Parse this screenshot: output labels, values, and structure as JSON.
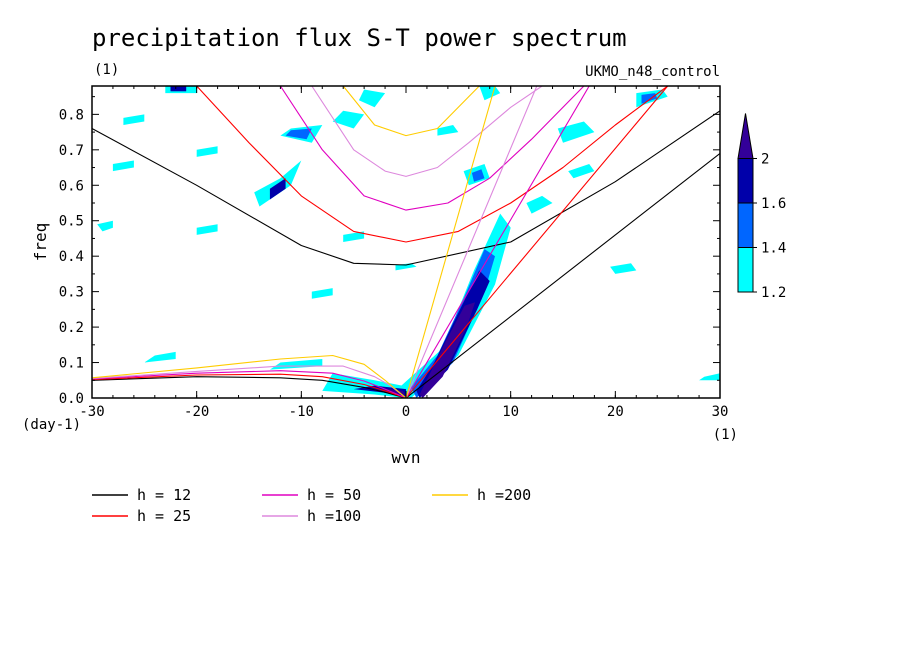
{
  "chart_data": {
    "type": "heatmap",
    "title": "precipitation flux S-T power spectrum",
    "subtitle_left": "(1)",
    "subtitle_right": "UKMO_n48_control",
    "xlabel": "wvn",
    "ylabel": "freq",
    "x_unit": "(1)",
    "y_unit": "(day-1)",
    "xlim": [
      -30,
      30
    ],
    "ylim": [
      0,
      0.88
    ],
    "x_ticks": [
      -30,
      -20,
      -10,
      0,
      10,
      20,
      30
    ],
    "x_tick_labels": [
      "-30",
      "-20",
      "-10",
      "0",
      "10",
      "20",
      "30"
    ],
    "y_ticks": [
      0,
      0.1,
      0.2,
      0.3,
      0.4,
      0.5,
      0.6,
      0.7,
      0.8
    ],
    "y_tick_labels": [
      "0.0",
      "0.1",
      "0.2",
      "0.3",
      "0.4",
      "0.5",
      "0.6",
      "0.7",
      "0.8"
    ],
    "colorbar": {
      "levels": [
        1.2,
        1.4,
        1.6,
        2
      ],
      "labels": [
        "1.2",
        "1.4",
        "1.6",
        "2"
      ],
      "colors": [
        "#00ffff",
        "#0066ff",
        "#0000aa",
        "#330099"
      ]
    },
    "legend": [
      {
        "label": "h = 12",
        "h": 12,
        "color": "#000000"
      },
      {
        "label": "h = 25",
        "h": 25,
        "color": "#ff0000"
      },
      {
        "label": "h = 50",
        "h": 50,
        "color": "#e000c0"
      },
      {
        "label": "h =100",
        "h": 100,
        "color": "#dd88dd"
      },
      {
        "label": "h =200",
        "h": 200,
        "color": "#ffcc00"
      }
    ],
    "kelvin_waves": [
      {
        "h": 12,
        "points": [
          [
            0,
            0
          ],
          [
            30,
            0.69
          ]
        ]
      },
      {
        "h": 25,
        "points": [
          [
            0,
            0
          ],
          [
            25,
            0.88
          ]
        ]
      },
      {
        "h": 50,
        "points": [
          [
            0,
            0
          ],
          [
            17.5,
            0.88
          ]
        ]
      },
      {
        "h": 100,
        "points": [
          [
            0,
            0
          ],
          [
            12.5,
            0.88
          ]
        ]
      },
      {
        "h": 200,
        "points": [
          [
            0,
            0
          ],
          [
            8.5,
            0.88
          ]
        ]
      }
    ],
    "gravity_waves_n1": [
      {
        "h": 12,
        "points": [
          [
            -30,
            0.76
          ],
          [
            -20,
            0.6
          ],
          [
            -10,
            0.43
          ],
          [
            -5,
            0.38
          ],
          [
            0,
            0.375
          ],
          [
            10,
            0.44
          ],
          [
            20,
            0.61
          ],
          [
            30,
            0.81
          ]
        ]
      },
      {
        "h": 25,
        "points": [
          [
            -20,
            0.88
          ],
          [
            -15,
            0.72
          ],
          [
            -10,
            0.57
          ],
          [
            -5,
            0.47
          ],
          [
            0,
            0.44
          ],
          [
            5,
            0.47
          ],
          [
            10,
            0.55
          ],
          [
            15,
            0.65
          ],
          [
            20,
            0.77
          ],
          [
            25,
            0.88
          ]
        ]
      },
      {
        "h": 50,
        "points": [
          [
            -12,
            0.88
          ],
          [
            -8,
            0.7
          ],
          [
            -4,
            0.57
          ],
          [
            0,
            0.53
          ],
          [
            4,
            0.55
          ],
          [
            8,
            0.62
          ],
          [
            12,
            0.73
          ],
          [
            17,
            0.88
          ]
        ]
      },
      {
        "h": 100,
        "points": [
          [
            -9,
            0.88
          ],
          [
            -5,
            0.7
          ],
          [
            -2,
            0.64
          ],
          [
            0,
            0.625
          ],
          [
            3,
            0.65
          ],
          [
            6,
            0.72
          ],
          [
            10,
            0.82
          ],
          [
            13,
            0.88
          ]
        ]
      },
      {
        "h": 200,
        "points": [
          [
            -6,
            0.88
          ],
          [
            -3,
            0.77
          ],
          [
            0,
            0.74
          ],
          [
            3,
            0.76
          ],
          [
            6,
            0.85
          ],
          [
            7,
            0.88
          ]
        ]
      }
    ],
    "rossby_waves": [
      {
        "h": 12,
        "points": [
          [
            -30,
            0.05
          ],
          [
            -20,
            0.06
          ],
          [
            -12,
            0.057
          ],
          [
            -8,
            0.05
          ],
          [
            -4,
            0.03
          ],
          [
            -2,
            0.016
          ],
          [
            0,
            0
          ]
        ]
      },
      {
        "h": 25,
        "points": [
          [
            -30,
            0.052
          ],
          [
            -20,
            0.065
          ],
          [
            -12,
            0.067
          ],
          [
            -8,
            0.06
          ],
          [
            -4,
            0.038
          ],
          [
            -2,
            0.02
          ],
          [
            0,
            0
          ]
        ]
      },
      {
        "h": 50,
        "points": [
          [
            -30,
            0.054
          ],
          [
            -20,
            0.07
          ],
          [
            -12,
            0.077
          ],
          [
            -7,
            0.07
          ],
          [
            -4,
            0.048
          ],
          [
            -2,
            0.025
          ],
          [
            0,
            0
          ]
        ]
      },
      {
        "h": 100,
        "points": [
          [
            -30,
            0.055
          ],
          [
            -20,
            0.075
          ],
          [
            -12,
            0.09
          ],
          [
            -6,
            0.09
          ],
          [
            -3,
            0.06
          ],
          [
            -1.5,
            0.035
          ],
          [
            0,
            0
          ]
        ]
      },
      {
        "h": 200,
        "points": [
          [
            -30,
            0.057
          ],
          [
            -20,
            0.085
          ],
          [
            -12,
            0.11
          ],
          [
            -7,
            0.12
          ],
          [
            -4,
            0.095
          ],
          [
            -2,
            0.05
          ],
          [
            0,
            0
          ]
        ]
      }
    ],
    "power_regions": [
      {
        "level": 1.2,
        "points": [
          [
            0.5,
            0.0
          ],
          [
            5,
            0.12
          ],
          [
            8.5,
            0.32
          ],
          [
            10,
            0.48
          ],
          [
            9,
            0.52
          ],
          [
            6.5,
            0.36
          ],
          [
            3.5,
            0.14
          ],
          [
            -1,
            0.02
          ]
        ]
      },
      {
        "level": 1.4,
        "points": [
          [
            1,
            0.0
          ],
          [
            4.5,
            0.1
          ],
          [
            7.5,
            0.3
          ],
          [
            8.5,
            0.4
          ],
          [
            7.5,
            0.42
          ],
          [
            5.5,
            0.28
          ],
          [
            3,
            0.12
          ],
          [
            0.5,
            0.03
          ]
        ]
      },
      {
        "level": 1.6,
        "points": [
          [
            1.3,
            0.0
          ],
          [
            4,
            0.08
          ],
          [
            6.8,
            0.25
          ],
          [
            8,
            0.33
          ],
          [
            7,
            0.36
          ],
          [
            5,
            0.24
          ],
          [
            2.7,
            0.1
          ],
          [
            1,
            0.02
          ]
        ]
      },
      {
        "level": 2,
        "points": [
          [
            1.6,
            0.0
          ],
          [
            3.5,
            0.06
          ],
          [
            5.8,
            0.2
          ],
          [
            6.6,
            0.27
          ],
          [
            5.6,
            0.26
          ],
          [
            3.8,
            0.16
          ],
          [
            2.3,
            0.07
          ],
          [
            1.3,
            0.01
          ]
        ]
      },
      {
        "level": 1.2,
        "points": [
          [
            -8,
            0.02
          ],
          [
            -3,
            0.01
          ],
          [
            0,
            0.0
          ],
          [
            0.5,
            0.03
          ],
          [
            -3,
            0.05
          ],
          [
            -7,
            0.07
          ]
        ]
      },
      {
        "level": 1.6,
        "points": [
          [
            -5,
            0.025
          ],
          [
            -2,
            0.015
          ],
          [
            0,
            0.0
          ],
          [
            0,
            0.025
          ],
          [
            -3,
            0.035
          ]
        ]
      },
      {
        "level": 2,
        "points": [
          [
            -3,
            0.02
          ],
          [
            -0.5,
            0.01
          ],
          [
            0,
            0.0
          ],
          [
            -0.3,
            0.02
          ],
          [
            -2,
            0.026
          ]
        ]
      },
      {
        "level": 1.2,
        "points": [
          [
            -14,
            0.54
          ],
          [
            -11,
            0.6
          ],
          [
            -10,
            0.67
          ],
          [
            -12,
            0.62
          ],
          [
            -14.5,
            0.58
          ]
        ]
      },
      {
        "level": 1.6,
        "points": [
          [
            -13,
            0.56
          ],
          [
            -11.5,
            0.59
          ],
          [
            -11.5,
            0.62
          ],
          [
            -13,
            0.59
          ]
        ]
      },
      {
        "level": 1.2,
        "points": [
          [
            -12,
            0.74
          ],
          [
            -9,
            0.72
          ],
          [
            -8,
            0.77
          ],
          [
            -11,
            0.76
          ]
        ]
      },
      {
        "level": 1.4,
        "points": [
          [
            -11.5,
            0.74
          ],
          [
            -9.5,
            0.73
          ],
          [
            -9,
            0.76
          ],
          [
            -11,
            0.755
          ]
        ]
      },
      {
        "level": 1.2,
        "points": [
          [
            -23,
            0.86
          ],
          [
            -20,
            0.86
          ],
          [
            -20,
            0.88
          ],
          [
            -23,
            0.88
          ]
        ]
      },
      {
        "level": 1.6,
        "points": [
          [
            -22.5,
            0.865
          ],
          [
            -21,
            0.865
          ],
          [
            -21,
            0.88
          ],
          [
            -22.5,
            0.88
          ]
        ]
      },
      {
        "level": 1.2,
        "points": [
          [
            -7,
            0.78
          ],
          [
            -5,
            0.76
          ],
          [
            -4,
            0.8
          ],
          [
            -6,
            0.81
          ]
        ]
      },
      {
        "level": 1.2,
        "points": [
          [
            -4.5,
            0.84
          ],
          [
            -3,
            0.82
          ],
          [
            -2,
            0.86
          ],
          [
            -4,
            0.87
          ]
        ]
      },
      {
        "level": 1.2,
        "points": [
          [
            6,
            0.6
          ],
          [
            8,
            0.62
          ],
          [
            7.5,
            0.66
          ],
          [
            5.5,
            0.64
          ]
        ]
      },
      {
        "level": 1.4,
        "points": [
          [
            6.5,
            0.61
          ],
          [
            7.5,
            0.62
          ],
          [
            7.2,
            0.645
          ],
          [
            6.3,
            0.635
          ]
        ]
      },
      {
        "level": 1.2,
        "points": [
          [
            7.5,
            0.84
          ],
          [
            9,
            0.86
          ],
          [
            8.5,
            0.88
          ],
          [
            7,
            0.88
          ]
        ]
      },
      {
        "level": 1.2,
        "points": [
          [
            15,
            0.72
          ],
          [
            18,
            0.75
          ],
          [
            17,
            0.78
          ],
          [
            14.5,
            0.76
          ]
        ]
      },
      {
        "level": 1.2,
        "points": [
          [
            22,
            0.82
          ],
          [
            25,
            0.85
          ],
          [
            24.5,
            0.87
          ],
          [
            22,
            0.86
          ]
        ]
      },
      {
        "level": 1.4,
        "points": [
          [
            22.5,
            0.83
          ],
          [
            24,
            0.845
          ],
          [
            23.8,
            0.86
          ],
          [
            22.5,
            0.855
          ]
        ]
      },
      {
        "level": 1.2,
        "points": [
          [
            -29,
            0.47
          ],
          [
            -28,
            0.48
          ],
          [
            -28,
            0.5
          ],
          [
            -29.5,
            0.49
          ]
        ]
      },
      {
        "level": 1.2,
        "points": [
          [
            -28,
            0.64
          ],
          [
            -26,
            0.65
          ],
          [
            -26,
            0.67
          ],
          [
            -28,
            0.66
          ]
        ]
      },
      {
        "level": 1.2,
        "points": [
          [
            -20,
            0.46
          ],
          [
            -18,
            0.47
          ],
          [
            -18,
            0.49
          ],
          [
            -20,
            0.48
          ]
        ]
      },
      {
        "level": 1.2,
        "points": [
          [
            -13,
            0.08
          ],
          [
            -8,
            0.09
          ],
          [
            -8,
            0.11
          ],
          [
            -12,
            0.1
          ]
        ]
      },
      {
        "level": 1.2,
        "points": [
          [
            -25,
            0.1
          ],
          [
            -22,
            0.11
          ],
          [
            -22,
            0.13
          ],
          [
            -24,
            0.12
          ]
        ]
      },
      {
        "level": 1.2,
        "points": [
          [
            -9,
            0.28
          ],
          [
            -7,
            0.29
          ],
          [
            -7,
            0.31
          ],
          [
            -9,
            0.3
          ]
        ]
      },
      {
        "level": 1.2,
        "points": [
          [
            -6,
            0.44
          ],
          [
            -4,
            0.45
          ],
          [
            -4,
            0.47
          ],
          [
            -6,
            0.46
          ]
        ]
      },
      {
        "level": 1.2,
        "points": [
          [
            -1,
            0.36
          ],
          [
            1,
            0.37
          ],
          [
            0.5,
            0.38
          ],
          [
            -1,
            0.375
          ]
        ]
      },
      {
        "level": 1.2,
        "points": [
          [
            12,
            0.52
          ],
          [
            14,
            0.55
          ],
          [
            13,
            0.57
          ],
          [
            11.5,
            0.55
          ]
        ]
      },
      {
        "level": 1.2,
        "points": [
          [
            16,
            0.62
          ],
          [
            18,
            0.64
          ],
          [
            17.5,
            0.66
          ],
          [
            15.5,
            0.64
          ]
        ]
      },
      {
        "level": 1.2,
        "points": [
          [
            20,
            0.35
          ],
          [
            22,
            0.36
          ],
          [
            21.5,
            0.38
          ],
          [
            19.5,
            0.37
          ]
        ]
      },
      {
        "level": 1.2,
        "points": [
          [
            28,
            0.05
          ],
          [
            30,
            0.05
          ],
          [
            30,
            0.07
          ],
          [
            28.5,
            0.06
          ]
        ]
      },
      {
        "level": 1.2,
        "points": [
          [
            -20,
            0.68
          ],
          [
            -18,
            0.69
          ],
          [
            -18,
            0.71
          ],
          [
            -20,
            0.7
          ]
        ]
      },
      {
        "level": 1.2,
        "points": [
          [
            3,
            0.74
          ],
          [
            5,
            0.75
          ],
          [
            4.5,
            0.77
          ],
          [
            3,
            0.76
          ]
        ]
      },
      {
        "level": 1.2,
        "points": [
          [
            -27,
            0.77
          ],
          [
            -25,
            0.78
          ],
          [
            -25,
            0.8
          ],
          [
            -27,
            0.79
          ]
        ]
      }
    ]
  }
}
